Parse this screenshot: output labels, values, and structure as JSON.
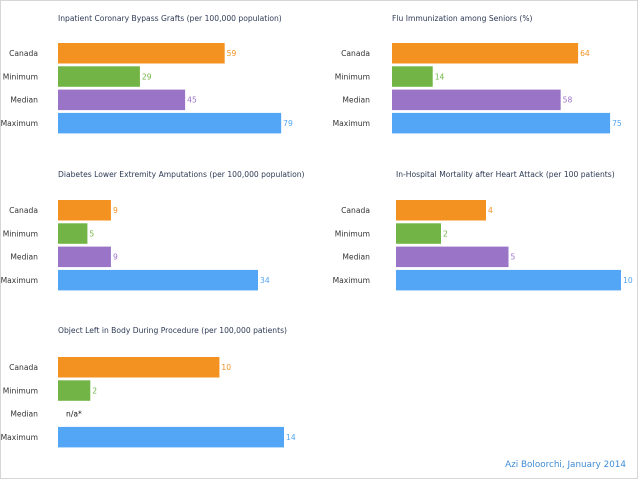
{
  "colors": {
    "Canada": "#f39220",
    "Minimum": "#72b546",
    "Median": "#9a74c7",
    "Maximum": "#52a6f5"
  },
  "chart_data": [
    {
      "type": "bar",
      "orientation": "horizontal",
      "title": "Inpatient Coronary Bypass Grafts (per 100,000 population)",
      "categories": [
        "Canada",
        "Minimum",
        "Median",
        "Maximum"
      ],
      "values": [
        59,
        29,
        45,
        79
      ],
      "labels": [
        "59",
        "29",
        "45",
        "79"
      ],
      "xlim": [
        0,
        80
      ]
    },
    {
      "type": "bar",
      "orientation": "horizontal",
      "title": "Flu Immunization among Seniors (%)",
      "categories": [
        "Canada",
        "Minimum",
        "Median",
        "Maximum"
      ],
      "values": [
        64,
        14,
        58,
        75
      ],
      "labels": [
        "64",
        "14",
        "58",
        "75"
      ],
      "xlim": [
        0,
        76
      ]
    },
    {
      "type": "bar",
      "orientation": "horizontal",
      "title": "Diabetes Lower Extremity Amputations (per 100,000 population)",
      "categories": [
        "Canada",
        "Minimum",
        "Median",
        "Maximum"
      ],
      "values": [
        9,
        5,
        9,
        34
      ],
      "labels": [
        "9",
        "5",
        "9",
        "34"
      ],
      "xlim": [
        0,
        34
      ]
    },
    {
      "type": "bar",
      "orientation": "horizontal",
      "title": "In-Hospital Mortality after Heart Attack (per 100 patients)",
      "categories": [
        "Canada",
        "Minimum",
        "Median",
        "Maximum"
      ],
      "values": [
        4,
        2,
        5,
        10
      ],
      "labels": [
        "4",
        "2",
        "5",
        "10"
      ],
      "xlim": [
        0,
        10
      ]
    },
    {
      "type": "bar",
      "orientation": "horizontal",
      "title": "Object Left in Body During Procedure (per 100,000 patients)",
      "categories": [
        "Canada",
        "Minimum",
        "Median",
        "Maximum"
      ],
      "values": [
        10,
        2,
        null,
        14
      ],
      "labels": [
        "10",
        "2",
        "n/a*",
        "14"
      ],
      "xlim": [
        0,
        14
      ]
    }
  ],
  "credit": "Azi Boloorchi, January 2014"
}
